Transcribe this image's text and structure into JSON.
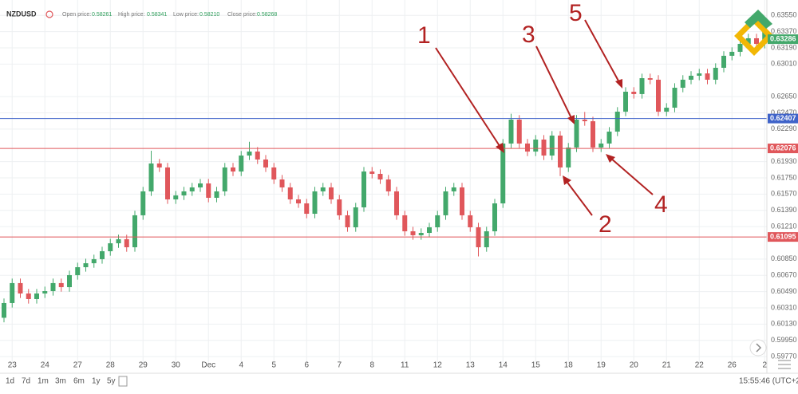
{
  "header": {
    "symbol": "NZDUSD",
    "open_label": "Open price:",
    "open": "0.58261",
    "high_label": "High price:",
    "high": "0.58341",
    "low_label": "Low price:",
    "low": "0.58210",
    "close_label": "Close price:",
    "close": "0.58268"
  },
  "chart_data": {
    "type": "candlestick",
    "categories": [
      null,
      "23",
      null,
      null,
      null,
      "24",
      null,
      null,
      null,
      "27",
      null,
      null,
      null,
      "28",
      null,
      null,
      null,
      "29",
      null,
      null,
      null,
      "30",
      null,
      null,
      null,
      "Dec",
      null,
      null,
      null,
      "4",
      null,
      null,
      null,
      "5",
      null,
      null,
      null,
      "6",
      null,
      null,
      null,
      "7",
      null,
      null,
      null,
      "8",
      null,
      null,
      null,
      "11",
      null,
      null,
      null,
      "12",
      null,
      null,
      null,
      "13",
      null,
      null,
      null,
      "14",
      null,
      null,
      null,
      "15",
      null,
      null,
      null,
      "18",
      null,
      null,
      null,
      "19",
      null,
      null,
      null,
      "20",
      null,
      null,
      null,
      "21",
      null,
      null,
      null,
      "22",
      null,
      null,
      null,
      "26",
      null,
      null,
      null,
      "2"
    ],
    "open": [
      0.602,
      0.60363,
      0.60584,
      0.60469,
      0.60407,
      0.60469,
      0.60495,
      0.60584,
      0.60539,
      0.60672,
      0.6076,
      0.60804,
      0.60849,
      0.60937,
      0.61025,
      0.6107,
      0.60981,
      0.61335,
      0.616,
      0.61909,
      0.61865,
      0.61511,
      0.61555,
      0.616,
      0.61644,
      0.61688,
      0.61529,
      0.616,
      0.61865,
      0.6182,
      0.61997,
      0.62041,
      0.61953,
      0.61865,
      0.61732,
      0.61644,
      0.61511,
      0.61467,
      0.61352,
      0.616,
      0.61644,
      0.61511,
      0.61335,
      0.61202,
      0.61423,
      0.6182,
      0.61794,
      0.61732,
      0.616,
      0.61335,
      0.61158,
      0.61114,
      0.6114,
      0.61202,
      0.61335,
      0.616,
      0.61644,
      0.61335,
      0.61202,
      0.60981,
      0.61158,
      0.61467,
      0.6213,
      0.62395,
      0.6213,
      0.62041,
      0.62174,
      0.61997,
      0.62218,
      0.61865,
      0.62086,
      0.62395,
      0.62377,
      0.62086,
      0.6213,
      0.62262,
      0.62483,
      0.62704,
      0.62678,
      0.62854,
      0.62837,
      0.62483,
      0.62527,
      0.62748,
      0.62837,
      0.62881,
      0.62907,
      0.62837,
      0.62969,
      0.63102,
      0.63146,
      0.63234,
      0.63296,
      0.63234
    ],
    "high": [
      0.60413,
      0.60634,
      0.60634,
      0.60519,
      0.60519,
      0.60545,
      0.60634,
      0.60634,
      0.60722,
      0.6081,
      0.60854,
      0.60899,
      0.60987,
      0.61075,
      0.6112,
      0.6112,
      0.61385,
      0.6165,
      0.6205,
      0.61959,
      0.61915,
      0.61605,
      0.6165,
      0.61694,
      0.61738,
      0.61738,
      0.6165,
      0.61915,
      0.61915,
      0.62047,
      0.6215,
      0.62091,
      0.62003,
      0.61915,
      0.61782,
      0.61694,
      0.61561,
      0.61517,
      0.6165,
      0.61694,
      0.61694,
      0.61561,
      0.61385,
      0.61473,
      0.6187,
      0.6187,
      0.61844,
      0.61782,
      0.6165,
      0.61385,
      0.61208,
      0.6119,
      0.61252,
      0.61385,
      0.6165,
      0.61694,
      0.61694,
      0.61385,
      0.61252,
      0.61208,
      0.61517,
      0.6218,
      0.6246,
      0.62445,
      0.6218,
      0.62224,
      0.62224,
      0.62268,
      0.62268,
      0.62136,
      0.62445,
      0.6248,
      0.62427,
      0.6218,
      0.62312,
      0.62533,
      0.62754,
      0.62754,
      0.62904,
      0.62904,
      0.62887,
      0.62577,
      0.62798,
      0.62887,
      0.62931,
      0.62957,
      0.62957,
      0.63019,
      0.63152,
      0.63196,
      0.63284,
      0.63346,
      0.63346,
      0.63417
    ],
    "low": [
      0.6015,
      0.60313,
      0.60419,
      0.60357,
      0.60357,
      0.60419,
      0.60445,
      0.60489,
      0.60489,
      0.60622,
      0.6071,
      0.60754,
      0.60799,
      0.60887,
      0.60975,
      0.60931,
      0.60931,
      0.61285,
      0.6155,
      0.61815,
      0.61461,
      0.61461,
      0.61505,
      0.6155,
      0.61594,
      0.61479,
      0.61479,
      0.6155,
      0.6177,
      0.6177,
      0.61947,
      0.61903,
      0.61815,
      0.61682,
      0.61594,
      0.61461,
      0.61417,
      0.61302,
      0.61302,
      0.6155,
      0.61461,
      0.61285,
      0.61152,
      0.61152,
      0.61373,
      0.61744,
      0.61682,
      0.6155,
      0.61285,
      0.61108,
      0.61064,
      0.61064,
      0.6109,
      0.61152,
      0.61285,
      0.6155,
      0.61285,
      0.61152,
      0.6088,
      0.60931,
      0.61108,
      0.61417,
      0.6208,
      0.6208,
      0.61991,
      0.61991,
      0.61947,
      0.61947,
      0.6177,
      0.61815,
      0.62036,
      0.62327,
      0.62036,
      0.62036,
      0.6208,
      0.62212,
      0.62433,
      0.62628,
      0.62628,
      0.62787,
      0.62433,
      0.62433,
      0.62477,
      0.62698,
      0.62787,
      0.62831,
      0.62787,
      0.62787,
      0.62919,
      0.63052,
      0.63096,
      0.63184,
      0.63184,
      0.63184
    ],
    "close": [
      0.60363,
      0.60584,
      0.60469,
      0.60407,
      0.60469,
      0.60495,
      0.60584,
      0.60539,
      0.60672,
      0.6076,
      0.60804,
      0.60849,
      0.60937,
      0.61025,
      0.6107,
      0.60981,
      0.61335,
      0.616,
      0.61909,
      0.61865,
      0.61511,
      0.61555,
      0.616,
      0.61644,
      0.61688,
      0.61529,
      0.616,
      0.61865,
      0.6182,
      0.61997,
      0.62041,
      0.61953,
      0.61865,
      0.61732,
      0.61644,
      0.61511,
      0.61467,
      0.61352,
      0.616,
      0.61644,
      0.61511,
      0.61335,
      0.61202,
      0.61423,
      0.6182,
      0.61794,
      0.61732,
      0.616,
      0.61335,
      0.61158,
      0.61114,
      0.6114,
      0.61202,
      0.61335,
      0.616,
      0.61644,
      0.61335,
      0.61202,
      0.60981,
      0.61158,
      0.61467,
      0.6213,
      0.62395,
      0.6213,
      0.62041,
      0.62174,
      0.61997,
      0.62218,
      0.61865,
      0.62086,
      0.62395,
      0.62377,
      0.62086,
      0.6213,
      0.62262,
      0.62483,
      0.62704,
      0.62678,
      0.62854,
      0.62837,
      0.62483,
      0.62527,
      0.62748,
      0.62837,
      0.62881,
      0.62907,
      0.62837,
      0.62969,
      0.63102,
      0.63146,
      0.63234,
      0.63296,
      0.63234,
      0.63367
    ],
    "up_color": "#43a86b",
    "down_color": "#e0575b",
    "ylim": [
      0.597,
      0.6372
    ],
    "yticks": [
      {
        "value": 0.6355,
        "label": "0.63550"
      },
      {
        "value": 0.6337,
        "label": "0.63370"
      },
      {
        "value": 0.6319,
        "label": "0.63190"
      },
      {
        "value": 0.6301,
        "label": "0.63010"
      },
      {
        "value": 0.6265,
        "label": "0.62650"
      },
      {
        "value": 0.6247,
        "label": "0.62470"
      },
      {
        "value": 0.6229,
        "label": "0.62290"
      },
      {
        "value": 0.6193,
        "label": "0.61930"
      },
      {
        "value": 0.6175,
        "label": "0.61750"
      },
      {
        "value": 0.6157,
        "label": "0.61570"
      },
      {
        "value": 0.6139,
        "label": "0.61390"
      },
      {
        "value": 0.6121,
        "label": "0.61210"
      },
      {
        "value": 0.6085,
        "label": "0.60850"
      },
      {
        "value": 0.6067,
        "label": "0.60670"
      },
      {
        "value": 0.6049,
        "label": "0.60490"
      },
      {
        "value": 0.6031,
        "label": "0.60310"
      },
      {
        "value": 0.6013,
        "label": "0.60130"
      },
      {
        "value": 0.5995,
        "label": "0.59950"
      },
      {
        "value": 0.5977,
        "label": "0.59770"
      }
    ],
    "grid": true,
    "levels": [
      {
        "value": 0.62407,
        "color": "#3f63c9"
      },
      {
        "value": 0.62076,
        "color": "#e0575b"
      },
      {
        "value": 0.61095,
        "color": "#e0575b"
      }
    ],
    "last_price": {
      "value": 0.63286,
      "color": "#43a86b"
    }
  },
  "annotations": [
    "1",
    "2",
    "3",
    "4",
    "5"
  ],
  "toolbar": {
    "ranges": [
      "1d",
      "7d",
      "1m",
      "3m",
      "6m",
      "1y",
      "5y"
    ],
    "clock": "15:55:46 (UTC+2)"
  }
}
